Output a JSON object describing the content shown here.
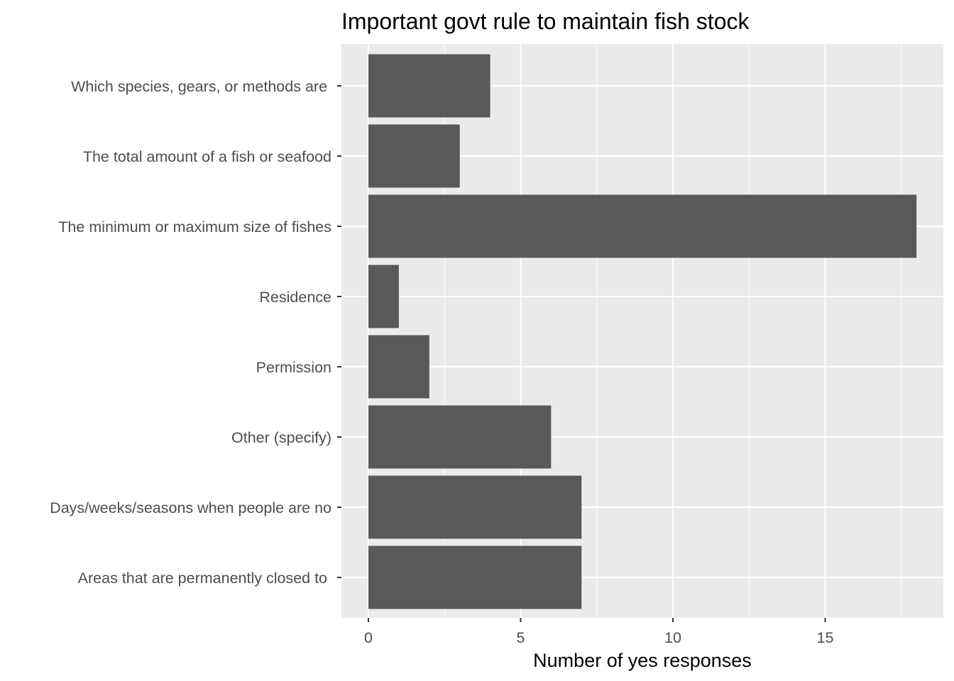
{
  "chart_data": {
    "type": "bar",
    "orientation": "horizontal",
    "title": "Important govt rule to maintain fish stock",
    "xlabel": "Number of yes responses",
    "ylabel": "",
    "categories": [
      "Which species, gears, or methods are ",
      "The total amount of a fish or seafood",
      "The minimum or maximum size of fishes",
      "Residence",
      "Permission",
      "Other (specify)",
      "Days/weeks/seasons when people are no",
      "Areas that are permanently closed to "
    ],
    "values": [
      4,
      3,
      18,
      1,
      2,
      6,
      7,
      7
    ],
    "xlim": [
      0,
      18.9
    ],
    "xticks": [
      0,
      5,
      10,
      15
    ],
    "grid": true,
    "legend": "none",
    "colors": {
      "bar": "#595959",
      "panel": "#ebebeb",
      "grid": "#ffffff",
      "tick_text": "#4d4d4d",
      "tick_mark": "#333333"
    }
  }
}
